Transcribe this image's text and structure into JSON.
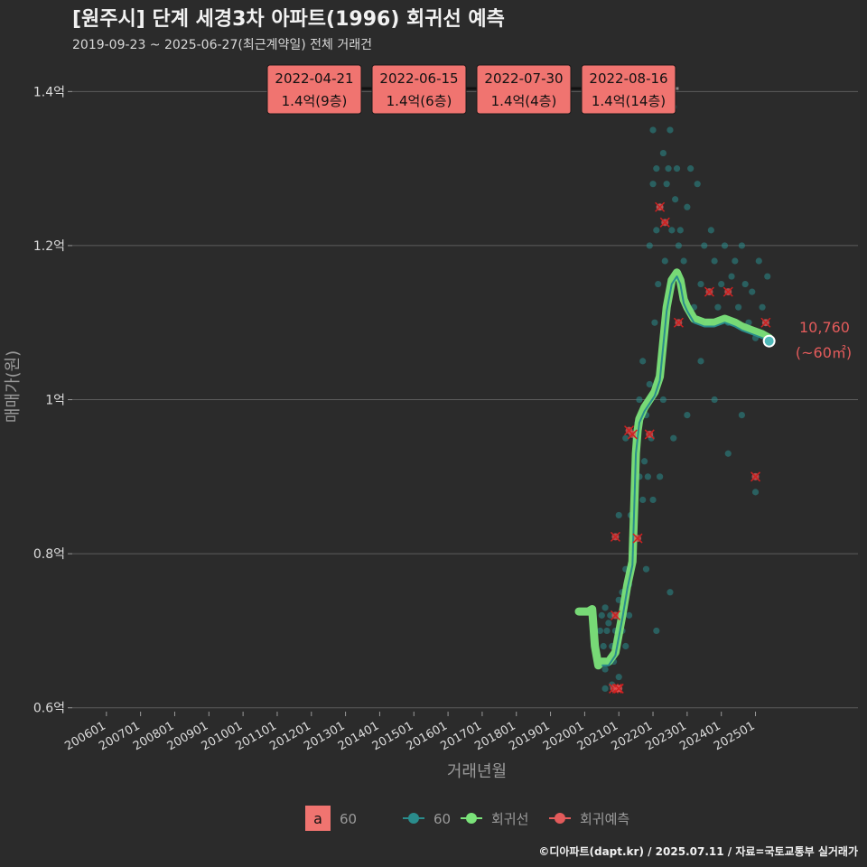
{
  "chart_data": {
    "type": "scatter",
    "title": "[원주시] 단계 세경3차 아파트(1996) 회귀선 예측",
    "subtitle": "2019-09-23 ~ 2025-06-27(최근계약일) 전체 거래건",
    "xlabel": "거래년월",
    "ylabel": "매매가(원)",
    "x_tick_labels": [
      "200601",
      "200701",
      "200801",
      "200901",
      "201001",
      "201101",
      "201201",
      "201301",
      "201401",
      "201501",
      "201601",
      "201701",
      "201801",
      "201901",
      "202001",
      "202101",
      "202201",
      "202301",
      "202401",
      "202501"
    ],
    "y_ticks": [
      {
        "value": 0.6,
        "label": "0.6억"
      },
      {
        "value": 0.8,
        "label": "0.8억"
      },
      {
        "value": 1.0,
        "label": "1억"
      },
      {
        "value": 1.2,
        "label": "1.2억"
      },
      {
        "value": 1.4,
        "label": "1.4억"
      }
    ],
    "ylim": [
      0.595,
      1.425
    ],
    "xlim": [
      2005.0,
      2028.0
    ],
    "annotations": [
      {
        "date": "2022-04-21",
        "text": "1.4억(9층)"
      },
      {
        "date": "2022-06-15",
        "text": "1.4억(6층)"
      },
      {
        "date": "2022-07-30",
        "text": "1.4억(4층)"
      },
      {
        "date": "2022-08-16",
        "text": "1.4억(14층)"
      }
    ],
    "end_label": {
      "value": "10,760",
      "sub": "(~60㎡)",
      "x": 2025.4,
      "y": 1.076
    },
    "regression_line": {
      "name": "회귀선",
      "x": [
        2019.83,
        2020.1,
        2020.22,
        2020.3,
        2020.4,
        2020.5,
        2020.7,
        2020.9,
        2021.1,
        2021.25,
        2021.4,
        2021.5,
        2021.55,
        2021.6,
        2021.75,
        2021.9,
        2022.05,
        2022.2,
        2022.4,
        2022.55,
        2022.7,
        2022.8,
        2022.9,
        2023.0,
        2023.2,
        2023.5,
        2023.8,
        2024.1,
        2024.4,
        2024.6,
        2024.9,
        2025.2,
        2025.4
      ],
      "y": [
        0.725,
        0.725,
        0.728,
        0.68,
        0.655,
        0.66,
        0.66,
        0.672,
        0.72,
        0.76,
        0.79,
        0.93,
        0.96,
        0.975,
        0.99,
        1.0,
        1.01,
        1.03,
        1.12,
        1.155,
        1.165,
        1.155,
        1.13,
        1.12,
        1.105,
        1.1,
        1.1,
        1.105,
        1.1,
        1.095,
        1.09,
        1.085,
        1.08
      ]
    },
    "series_60_line": {
      "name": "60",
      "x": [
        2020.5,
        2020.7,
        2020.9,
        2021.1,
        2021.25,
        2021.4,
        2021.5,
        2021.6,
        2021.75,
        2021.9,
        2022.05,
        2022.2,
        2022.4,
        2022.55,
        2022.7,
        2022.8,
        2022.9,
        2023.0,
        2023.2,
        2023.5,
        2023.8,
        2024.1,
        2024.4,
        2024.6,
        2024.9,
        2025.2,
        2025.4
      ],
      "y": [
        0.655,
        0.655,
        0.668,
        0.715,
        0.755,
        0.785,
        0.93,
        0.97,
        0.985,
        0.995,
        1.005,
        1.025,
        1.115,
        1.15,
        1.16,
        1.15,
        1.125,
        1.115,
        1.1,
        1.095,
        1.095,
        1.1,
        1.095,
        1.09,
        1.085,
        1.08,
        1.076
      ]
    },
    "series_60_points": {
      "name": "60",
      "x": [
        2020.45,
        2020.5,
        2020.55,
        2020.6,
        2020.6,
        2020.65,
        2020.7,
        2020.7,
        2020.75,
        2020.8,
        2020.85,
        2020.9,
        2020.95,
        2021.0,
        2021.0,
        2021.05,
        2021.1,
        2021.1,
        2021.15,
        2021.2,
        2021.2,
        2021.3,
        2021.3,
        2021.35,
        2021.4,
        2021.45,
        2021.5,
        2021.55,
        2021.6,
        2021.7,
        2021.7,
        2021.75,
        2021.8,
        2021.85,
        2021.9,
        2021.9,
        2021.95,
        2022.0,
        2022.0,
        2022.05,
        2022.1,
        2022.1,
        2022.15,
        2022.2,
        2022.25,
        2022.3,
        2022.3,
        2022.35,
        2022.4,
        2022.4,
        2022.45,
        2022.5,
        2022.55,
        2022.6,
        2022.65,
        2022.7,
        2022.75,
        2022.8,
        2022.9,
        2023.0,
        2023.1,
        2023.2,
        2023.3,
        2023.4,
        2023.5,
        2023.6,
        2023.7,
        2023.8,
        2023.9,
        2024.0,
        2024.1,
        2024.2,
        2024.3,
        2024.4,
        2024.5,
        2024.6,
        2024.7,
        2024.8,
        2024.9,
        2025.0,
        2025.1,
        2025.2,
        2025.3,
        2025.35,
        2020.6,
        2020.8,
        2021.2,
        2021.6,
        2022.0,
        2022.2,
        2022.6,
        2023.0,
        2023.4,
        2023.8,
        2024.2,
        2024.6,
        2025.0,
        2021.0,
        2021.4,
        2021.8,
        2022.1,
        2022.5
      ],
      "y": [
        0.7,
        0.72,
        0.68,
        0.73,
        0.65,
        0.7,
        0.71,
        0.66,
        0.72,
        0.68,
        0.66,
        0.7,
        0.69,
        0.74,
        0.64,
        0.72,
        0.75,
        0.7,
        0.73,
        0.78,
        0.68,
        0.76,
        0.72,
        0.85,
        0.8,
        0.88,
        0.95,
        0.97,
        1.0,
        0.87,
        1.05,
        0.92,
        0.98,
        0.9,
        1.02,
        1.2,
        0.95,
        1.28,
        1.35,
        1.1,
        1.22,
        1.3,
        1.15,
        1.25,
        1.38,
        1.0,
        1.32,
        1.18,
        1.28,
        1.4,
        1.3,
        1.35,
        1.22,
        1.38,
        1.26,
        1.3,
        1.2,
        1.22,
        1.18,
        1.25,
        1.3,
        1.12,
        1.28,
        1.15,
        1.2,
        1.1,
        1.22,
        1.18,
        1.12,
        1.15,
        1.2,
        1.1,
        1.16,
        1.18,
        1.12,
        1.2,
        1.15,
        1.1,
        1.14,
        1.08,
        1.18,
        1.12,
        1.1,
        1.16,
        0.625,
        0.63,
        0.95,
        0.9,
        0.87,
        0.9,
        0.95,
        0.98,
        1.05,
        1.0,
        0.93,
        0.98,
        0.88,
        0.85,
        0.82,
        0.78,
        0.7,
        0.75
      ]
    },
    "regression_forecast_points": {
      "name": "회귀예측",
      "x": [
        2020.85,
        2020.9,
        2020.9,
        2020.95,
        2021.0,
        2021.3,
        2021.4,
        2021.55,
        2021.9,
        2022.2,
        2022.35,
        2022.75,
        2023.65,
        2024.2,
        2025.0,
        2025.3
      ],
      "y": [
        0.625,
        0.72,
        0.822,
        0.625,
        0.625,
        0.96,
        0.955,
        0.82,
        0.955,
        1.25,
        1.23,
        1.1,
        1.14,
        1.14,
        0.9,
        1.1
      ]
    },
    "legend": [
      {
        "kind": "text-box",
        "key": "a",
        "label": "60"
      },
      {
        "kind": "point-line",
        "label": "60"
      },
      {
        "kind": "point-line",
        "label": "회귀선"
      },
      {
        "kind": "point-line",
        "label": "회귀예측"
      }
    ],
    "colors": {
      "background": "#2b2b2b",
      "grid": "#5c5c5c",
      "text": "#dcdcdc",
      "muted_text": "#9a9a9a",
      "teal": "#2a8c8c",
      "teal_light": "#4fb8b8",
      "green": "#7be37a",
      "red": "#e35b5b",
      "label_bg": "#f07470"
    }
  },
  "footer": {
    "credit": "©디아파트(dapt.kr) / 2025.07.11 / 자료=국토교통부 실거래가"
  }
}
